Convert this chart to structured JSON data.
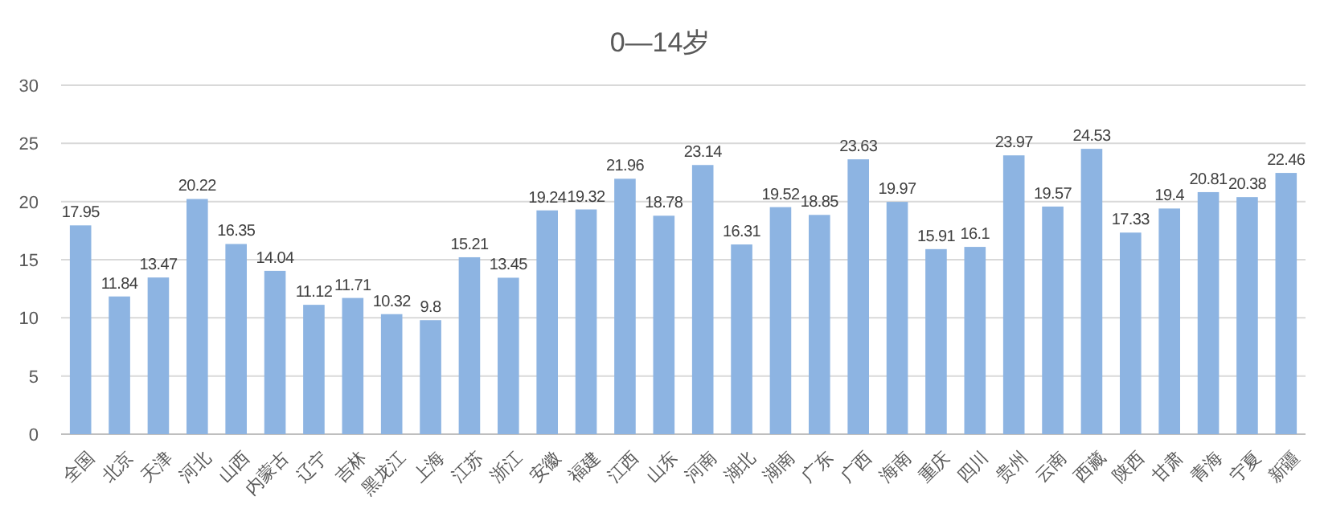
{
  "chart_data": {
    "type": "bar",
    "title": "0—14岁",
    "categories": [
      "全国",
      "北京",
      "天津",
      "河北",
      "山西",
      "内蒙古",
      "辽宁",
      "吉林",
      "黑龙江",
      "上海",
      "江苏",
      "浙江",
      "安徽",
      "福建",
      "江西",
      "山东",
      "河南",
      "湖北",
      "湖南",
      "广东",
      "广西",
      "海南",
      "重庆",
      "四川",
      "贵州",
      "云南",
      "西藏",
      "陕西",
      "甘肃",
      "青海",
      "宁夏",
      "新疆"
    ],
    "values": [
      17.95,
      11.84,
      13.47,
      20.22,
      16.35,
      14.04,
      11.12,
      11.71,
      10.32,
      9.8,
      15.21,
      13.45,
      19.24,
      19.32,
      21.96,
      18.78,
      23.14,
      16.31,
      19.52,
      18.85,
      23.63,
      19.97,
      15.91,
      16.1,
      23.97,
      19.57,
      24.53,
      17.33,
      19.4,
      20.81,
      20.38,
      22.46
    ],
    "color": "#8db4e2",
    "ylim": [
      0,
      30
    ],
    "yticks": [
      0,
      5,
      10,
      15,
      20,
      25,
      30
    ],
    "grid": "y",
    "data_labels": true
  }
}
